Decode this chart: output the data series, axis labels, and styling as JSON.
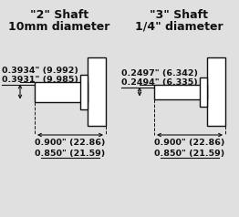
{
  "bg_color": "#e0e0e0",
  "title_left_line1": "\"2\" Shaft",
  "title_left_line2": "10mm diameter",
  "title_right_line1": "\"3\" Shaft",
  "title_right_line2": "1/4\" diameter",
  "left_dim_top": "0.3934\" (9.992)",
  "left_dim_bot": "0.3931\" (9.985)",
  "left_len_top": "0.900\" (22.86)",
  "left_len_bot": "0.850\" (21.59)",
  "right_dim_top": "0.2497\" (6.342)",
  "right_dim_bot": "0.2494\" (6.335)",
  "right_len_top": "0.900\" (22.86)",
  "right_len_bot": "0.850\" (21.59)",
  "line_color": "#111111",
  "text_color": "#111111",
  "title_fontsize": 9.0,
  "dim_fontsize": 6.8
}
